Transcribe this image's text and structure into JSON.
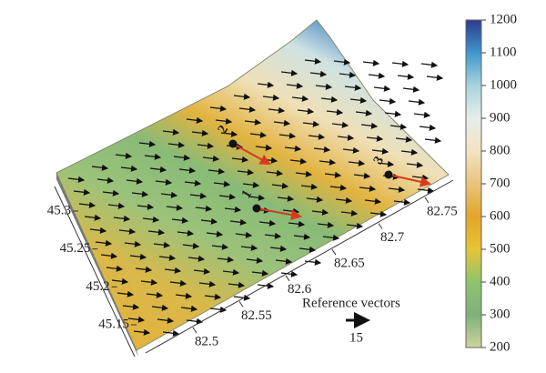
{
  "colorbar": {
    "lim": [
      200,
      1200
    ],
    "ticks": [
      200,
      300,
      400,
      500,
      600,
      700,
      800,
      900,
      1000,
      1100,
      1200
    ]
  },
  "latitude_ticks": [
    45.15,
    45.2,
    45.25,
    45.3
  ],
  "longitude_ticks": [
    82.5,
    82.55,
    82.6,
    82.65,
    82.7,
    82.75
  ],
  "points": [
    "1",
    "2",
    "3"
  ],
  "reference": {
    "label": "Reference vectors",
    "value": 15
  }
}
